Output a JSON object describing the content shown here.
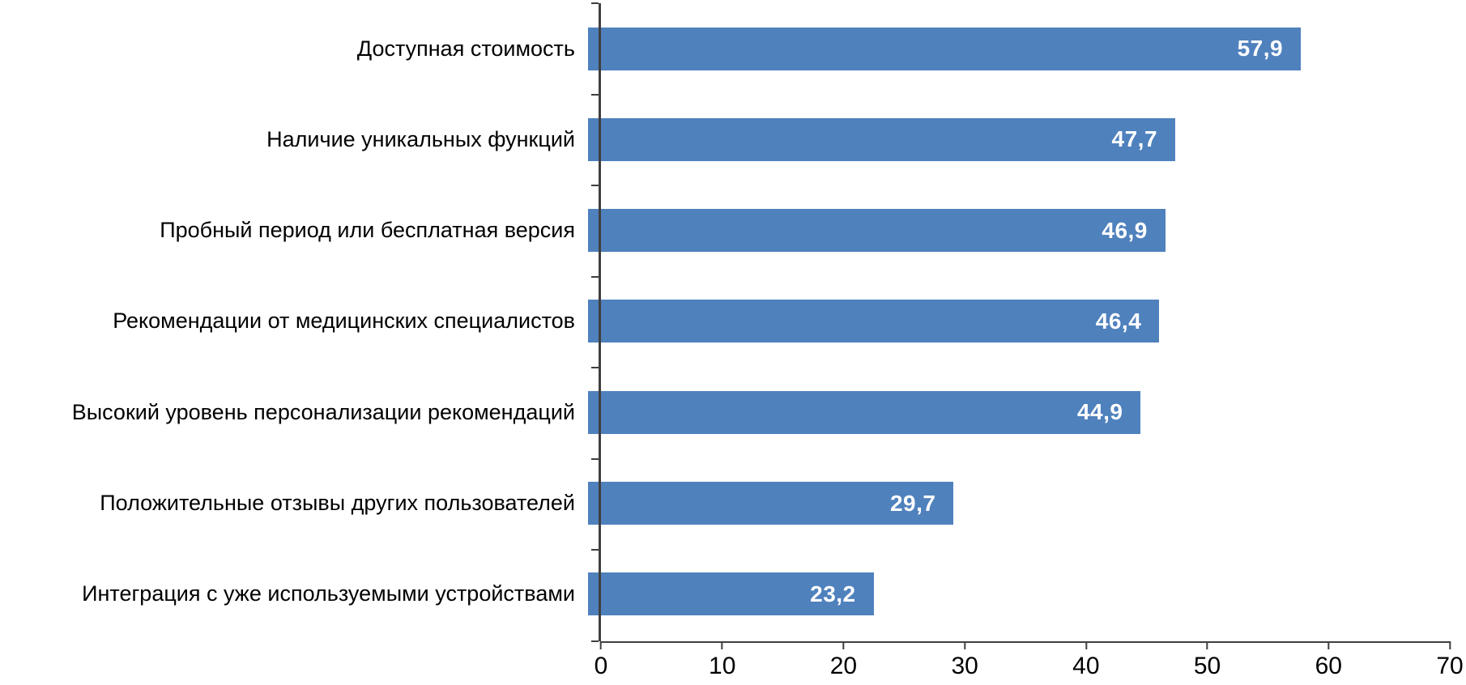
{
  "chart_data": {
    "type": "bar",
    "orientation": "horizontal",
    "title": "",
    "xlabel": "",
    "ylabel": "",
    "categories": [
      "Доступная стоимость",
      "Наличие уникальных функций",
      "Пробный период или бесплатная версия",
      "Рекомендации от медицинских специалистов",
      "Высокий уровень персонализации рекомендаций",
      "Положительные отзывы других пользователей",
      "Интеграция с уже используемыми устройствами"
    ],
    "values": [
      57.9,
      47.7,
      46.9,
      46.4,
      44.9,
      29.7,
      23.2
    ],
    "value_labels": [
      "57,9",
      "47,7",
      "46,9",
      "46,4",
      "44,9",
      "29,7",
      "23,2"
    ],
    "xlim": [
      0,
      70
    ],
    "x_ticks": [
      0,
      10,
      20,
      30,
      40,
      50,
      60,
      70
    ],
    "grid": false,
    "legend": false,
    "bar_color": "#4F81BD",
    "value_label_color": "#FFFFFF",
    "axis_color": "#3F3F3F",
    "label_color": "#000000"
  }
}
